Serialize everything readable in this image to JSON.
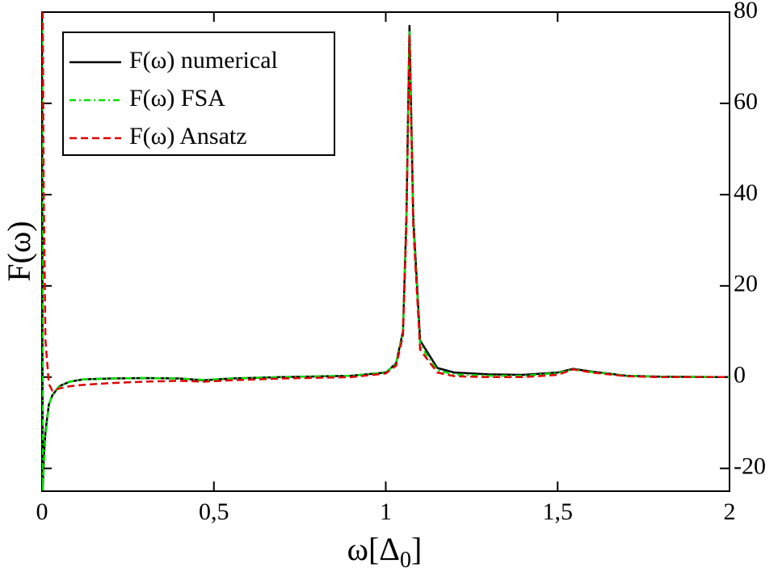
{
  "chart_data": {
    "type": "line",
    "xlabel": [
      "ω[Δ",
      "0",
      "]"
    ],
    "ylabel": "F(ω)",
    "x": [
      0,
      0.002,
      0.005,
      0.01,
      0.02,
      0.03,
      0.05,
      0.08,
      0.12,
      0.2,
      0.3,
      0.4,
      0.47,
      0.55,
      0.7,
      0.9,
      1.0,
      1.03,
      1.05,
      1.06,
      1.069,
      1.08,
      1.1,
      1.15,
      1.2,
      1.3,
      1.4,
      1.5,
      1.545,
      1.6,
      1.7,
      1.8,
      2.0
    ],
    "series": [
      {
        "name": "F(ω) numerical",
        "color": "#000000",
        "dash": "none",
        "values": [
          80,
          -25,
          -18,
          -12,
          -6,
          -4,
          -2,
          -1,
          -0.5,
          -0.3,
          -0.2,
          -0.3,
          -0.7,
          -0.3,
          0,
          0.3,
          1,
          3,
          10,
          35,
          77,
          35,
          8,
          2,
          1,
          0.6,
          0.5,
          1,
          1.8,
          1.2,
          0.3,
          0.1,
          0
        ]
      },
      {
        "name": "F(ω) FSA",
        "color": "#00e000",
        "dash": "8 4 2 4",
        "values": [
          80,
          -25,
          -20,
          -13,
          -6,
          -4,
          -2,
          -1,
          -0.5,
          -0.3,
          -0.2,
          -0.3,
          -0.6,
          -0.3,
          0,
          0.3,
          1,
          3,
          10,
          34,
          76,
          34,
          7,
          1.5,
          0.6,
          0.3,
          0.3,
          0.9,
          1.7,
          1.1,
          0.3,
          0.1,
          0
        ]
      },
      {
        "name": "F(ω) Ansatz",
        "color": "#e00000",
        "dash": "9 5",
        "values": [
          80,
          80,
          40,
          8,
          -1.5,
          -3,
          -2.5,
          -2,
          -1.7,
          -1.3,
          -1,
          -0.8,
          -1,
          -0.7,
          -0.3,
          0,
          0.8,
          2.5,
          9,
          33,
          75,
          33,
          6,
          1,
          0.2,
          0,
          0,
          0.5,
          1.7,
          1,
          0.2,
          0,
          0
        ]
      }
    ],
    "xlim": [
      0,
      2
    ],
    "xticks": [
      0,
      {
        "value": 0.5,
        "label": "0,5"
      },
      1,
      {
        "value": 1.5,
        "label": "1,5"
      },
      2
    ],
    "ylim": [
      -25,
      80
    ],
    "yticks": [
      -20,
      0,
      20,
      40,
      60,
      80
    ],
    "grid": false,
    "legend": "upper left"
  }
}
